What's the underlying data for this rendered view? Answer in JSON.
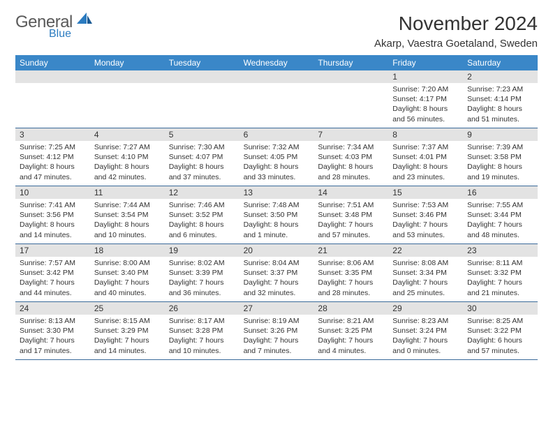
{
  "logo": {
    "general": "General",
    "blue": "Blue"
  },
  "title": "November 2024",
  "location": "Akarp, Vaestra Goetaland, Sweden",
  "colors": {
    "header_bg": "#3a87c8",
    "header_text": "#ffffff",
    "daynum_bg": "#e3e3e3",
    "text": "#333333",
    "border": "#3a6a9a",
    "accent_blue": "#2b7bc0",
    "logo_gray": "#5a5a5a"
  },
  "day_names": [
    "Sunday",
    "Monday",
    "Tuesday",
    "Wednesday",
    "Thursday",
    "Friday",
    "Saturday"
  ],
  "weeks": [
    [
      {
        "num": "",
        "sunrise": "",
        "sunset": "",
        "daylight": ""
      },
      {
        "num": "",
        "sunrise": "",
        "sunset": "",
        "daylight": ""
      },
      {
        "num": "",
        "sunrise": "",
        "sunset": "",
        "daylight": ""
      },
      {
        "num": "",
        "sunrise": "",
        "sunset": "",
        "daylight": ""
      },
      {
        "num": "",
        "sunrise": "",
        "sunset": "",
        "daylight": ""
      },
      {
        "num": "1",
        "sunrise": "Sunrise: 7:20 AM",
        "sunset": "Sunset: 4:17 PM",
        "daylight": "Daylight: 8 hours and 56 minutes."
      },
      {
        "num": "2",
        "sunrise": "Sunrise: 7:23 AM",
        "sunset": "Sunset: 4:14 PM",
        "daylight": "Daylight: 8 hours and 51 minutes."
      }
    ],
    [
      {
        "num": "3",
        "sunrise": "Sunrise: 7:25 AM",
        "sunset": "Sunset: 4:12 PM",
        "daylight": "Daylight: 8 hours and 47 minutes."
      },
      {
        "num": "4",
        "sunrise": "Sunrise: 7:27 AM",
        "sunset": "Sunset: 4:10 PM",
        "daylight": "Daylight: 8 hours and 42 minutes."
      },
      {
        "num": "5",
        "sunrise": "Sunrise: 7:30 AM",
        "sunset": "Sunset: 4:07 PM",
        "daylight": "Daylight: 8 hours and 37 minutes."
      },
      {
        "num": "6",
        "sunrise": "Sunrise: 7:32 AM",
        "sunset": "Sunset: 4:05 PM",
        "daylight": "Daylight: 8 hours and 33 minutes."
      },
      {
        "num": "7",
        "sunrise": "Sunrise: 7:34 AM",
        "sunset": "Sunset: 4:03 PM",
        "daylight": "Daylight: 8 hours and 28 minutes."
      },
      {
        "num": "8",
        "sunrise": "Sunrise: 7:37 AM",
        "sunset": "Sunset: 4:01 PM",
        "daylight": "Daylight: 8 hours and 23 minutes."
      },
      {
        "num": "9",
        "sunrise": "Sunrise: 7:39 AM",
        "sunset": "Sunset: 3:58 PM",
        "daylight": "Daylight: 8 hours and 19 minutes."
      }
    ],
    [
      {
        "num": "10",
        "sunrise": "Sunrise: 7:41 AM",
        "sunset": "Sunset: 3:56 PM",
        "daylight": "Daylight: 8 hours and 14 minutes."
      },
      {
        "num": "11",
        "sunrise": "Sunrise: 7:44 AM",
        "sunset": "Sunset: 3:54 PM",
        "daylight": "Daylight: 8 hours and 10 minutes."
      },
      {
        "num": "12",
        "sunrise": "Sunrise: 7:46 AM",
        "sunset": "Sunset: 3:52 PM",
        "daylight": "Daylight: 8 hours and 6 minutes."
      },
      {
        "num": "13",
        "sunrise": "Sunrise: 7:48 AM",
        "sunset": "Sunset: 3:50 PM",
        "daylight": "Daylight: 8 hours and 1 minute."
      },
      {
        "num": "14",
        "sunrise": "Sunrise: 7:51 AM",
        "sunset": "Sunset: 3:48 PM",
        "daylight": "Daylight: 7 hours and 57 minutes."
      },
      {
        "num": "15",
        "sunrise": "Sunrise: 7:53 AM",
        "sunset": "Sunset: 3:46 PM",
        "daylight": "Daylight: 7 hours and 53 minutes."
      },
      {
        "num": "16",
        "sunrise": "Sunrise: 7:55 AM",
        "sunset": "Sunset: 3:44 PM",
        "daylight": "Daylight: 7 hours and 48 minutes."
      }
    ],
    [
      {
        "num": "17",
        "sunrise": "Sunrise: 7:57 AM",
        "sunset": "Sunset: 3:42 PM",
        "daylight": "Daylight: 7 hours and 44 minutes."
      },
      {
        "num": "18",
        "sunrise": "Sunrise: 8:00 AM",
        "sunset": "Sunset: 3:40 PM",
        "daylight": "Daylight: 7 hours and 40 minutes."
      },
      {
        "num": "19",
        "sunrise": "Sunrise: 8:02 AM",
        "sunset": "Sunset: 3:39 PM",
        "daylight": "Daylight: 7 hours and 36 minutes."
      },
      {
        "num": "20",
        "sunrise": "Sunrise: 8:04 AM",
        "sunset": "Sunset: 3:37 PM",
        "daylight": "Daylight: 7 hours and 32 minutes."
      },
      {
        "num": "21",
        "sunrise": "Sunrise: 8:06 AM",
        "sunset": "Sunset: 3:35 PM",
        "daylight": "Daylight: 7 hours and 28 minutes."
      },
      {
        "num": "22",
        "sunrise": "Sunrise: 8:08 AM",
        "sunset": "Sunset: 3:34 PM",
        "daylight": "Daylight: 7 hours and 25 minutes."
      },
      {
        "num": "23",
        "sunrise": "Sunrise: 8:11 AM",
        "sunset": "Sunset: 3:32 PM",
        "daylight": "Daylight: 7 hours and 21 minutes."
      }
    ],
    [
      {
        "num": "24",
        "sunrise": "Sunrise: 8:13 AM",
        "sunset": "Sunset: 3:30 PM",
        "daylight": "Daylight: 7 hours and 17 minutes."
      },
      {
        "num": "25",
        "sunrise": "Sunrise: 8:15 AM",
        "sunset": "Sunset: 3:29 PM",
        "daylight": "Daylight: 7 hours and 14 minutes."
      },
      {
        "num": "26",
        "sunrise": "Sunrise: 8:17 AM",
        "sunset": "Sunset: 3:28 PM",
        "daylight": "Daylight: 7 hours and 10 minutes."
      },
      {
        "num": "27",
        "sunrise": "Sunrise: 8:19 AM",
        "sunset": "Sunset: 3:26 PM",
        "daylight": "Daylight: 7 hours and 7 minutes."
      },
      {
        "num": "28",
        "sunrise": "Sunrise: 8:21 AM",
        "sunset": "Sunset: 3:25 PM",
        "daylight": "Daylight: 7 hours and 4 minutes."
      },
      {
        "num": "29",
        "sunrise": "Sunrise: 8:23 AM",
        "sunset": "Sunset: 3:24 PM",
        "daylight": "Daylight: 7 hours and 0 minutes."
      },
      {
        "num": "30",
        "sunrise": "Sunrise: 8:25 AM",
        "sunset": "Sunset: 3:22 PM",
        "daylight": "Daylight: 6 hours and 57 minutes."
      }
    ]
  ]
}
